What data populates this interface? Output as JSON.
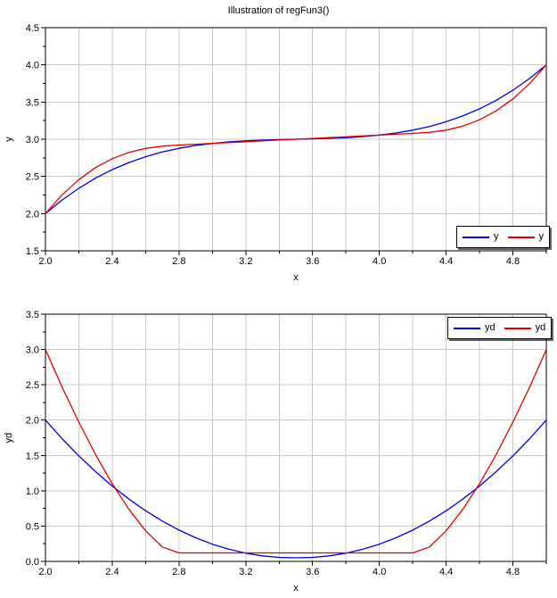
{
  "title": "Illustration of regFun3()",
  "colors": {
    "background": "#ffffff",
    "axis": "#000000",
    "grid": "#c8c8c8",
    "text": "#000000",
    "series_blue": "#0000dd",
    "series_red": "#dd0000"
  },
  "chart_data": [
    {
      "type": "line",
      "title": "",
      "xlabel": "x",
      "ylabel": "y",
      "xlim": [
        2.0,
        5.0
      ],
      "ylim": [
        1.5,
        4.5
      ],
      "x_grid_step": 0.2,
      "x_label_step": 0.4,
      "y_label_step": 0.5,
      "y_minor_step": 0.25,
      "grid": true,
      "legend_position": "bottom-right",
      "x": [
        2.0,
        2.1,
        2.2,
        2.3,
        2.4,
        2.5,
        2.6,
        2.7,
        2.8,
        2.9,
        3.0,
        3.1,
        3.2,
        3.3,
        3.4,
        3.5,
        3.6,
        3.7,
        3.8,
        3.9,
        4.0,
        4.1,
        4.2,
        4.3,
        4.4,
        4.5,
        4.6,
        4.7,
        4.8,
        4.9,
        5.0
      ],
      "series": [
        {
          "name": "y",
          "color": "#0000dd",
          "values": [
            2.0,
            2.183,
            2.341,
            2.477,
            2.591,
            2.687,
            2.765,
            2.828,
            2.878,
            2.916,
            2.944,
            2.965,
            2.979,
            2.988,
            2.995,
            3.0,
            3.005,
            3.012,
            3.021,
            3.035,
            3.056,
            3.084,
            3.122,
            3.172,
            3.235,
            3.313,
            3.409,
            3.523,
            3.659,
            3.817,
            4.0
          ]
        },
        {
          "name": "y",
          "color": "#dd0000",
          "values": [
            2.0,
            2.252,
            2.457,
            2.618,
            2.739,
            2.824,
            2.878,
            2.907,
            2.922,
            2.933,
            2.945,
            2.956,
            2.967,
            2.978,
            2.989,
            3.0,
            3.011,
            3.022,
            3.033,
            3.044,
            3.055,
            3.067,
            3.078,
            3.093,
            3.122,
            3.176,
            3.261,
            3.382,
            3.543,
            3.748,
            4.0
          ]
        }
      ]
    },
    {
      "type": "line",
      "title": "",
      "xlabel": "x",
      "ylabel": "yd",
      "xlim": [
        2.0,
        5.0
      ],
      "ylim": [
        0.0,
        3.5
      ],
      "x_grid_step": 0.2,
      "x_label_step": 0.4,
      "y_label_step": 0.5,
      "y_minor_step": 0.25,
      "grid": true,
      "legend_position": "top-right",
      "x": [
        2.0,
        2.1,
        2.2,
        2.3,
        2.4,
        2.5,
        2.6,
        2.7,
        2.8,
        2.9,
        3.0,
        3.1,
        3.2,
        3.3,
        3.4,
        3.5,
        3.6,
        3.7,
        3.8,
        3.9,
        4.0,
        4.1,
        4.2,
        4.3,
        4.4,
        4.5,
        4.6,
        4.7,
        4.8,
        4.9,
        5.0
      ],
      "series": [
        {
          "name": "yd",
          "color": "#0000dd",
          "values": [
            2.0,
            1.737,
            1.494,
            1.271,
            1.067,
            0.882,
            0.717,
            0.571,
            0.444,
            0.335,
            0.244,
            0.172,
            0.116,
            0.078,
            0.057,
            0.05,
            0.057,
            0.078,
            0.116,
            0.172,
            0.244,
            0.335,
            0.444,
            0.571,
            0.717,
            0.882,
            1.067,
            1.271,
            1.494,
            1.737,
            2.0
          ]
        },
        {
          "name": "yd",
          "color": "#dd0000",
          "values": [
            3.0,
            2.467,
            1.971,
            1.514,
            1.1,
            0.737,
            0.433,
            0.205,
            0.12,
            0.12,
            0.12,
            0.12,
            0.12,
            0.12,
            0.12,
            0.12,
            0.12,
            0.12,
            0.12,
            0.12,
            0.12,
            0.12,
            0.12,
            0.205,
            0.433,
            0.737,
            1.1,
            1.514,
            1.971,
            2.467,
            3.0
          ]
        }
      ]
    }
  ]
}
